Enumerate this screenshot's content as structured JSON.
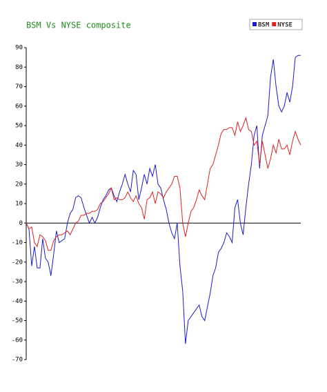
{
  "chart_data": {
    "type": "line",
    "title": "BSM Vs NYSE composite",
    "ylim": [
      -70,
      90
    ],
    "yticks": [
      -70,
      -60,
      -50,
      -40,
      -30,
      -20,
      -10,
      0,
      10,
      20,
      30,
      40,
      50,
      60,
      70,
      80,
      90
    ],
    "series": [
      {
        "name": "BSM",
        "color": "#1a1acc",
        "values": [
          0,
          -3,
          -22,
          -12,
          -23,
          -23,
          -8,
          -18,
          -20,
          -27,
          -16,
          -4,
          -10,
          -9,
          -8,
          0,
          5,
          7,
          13,
          14,
          13,
          8,
          4,
          0,
          3,
          0,
          3,
          8,
          12,
          14,
          17,
          18,
          14,
          11,
          16,
          20,
          25,
          20,
          16,
          27,
          25,
          12,
          18,
          25,
          20,
          28,
          24,
          30,
          20,
          18,
          12,
          7,
          0,
          -5,
          -8,
          0,
          -22,
          -35,
          -62,
          -50,
          -48,
          -46,
          -44,
          -42,
          -48,
          -50,
          -43,
          -36,
          -27,
          -23,
          -15,
          -13,
          -10,
          -5,
          -7,
          -10,
          8,
          12,
          0,
          -6,
          8,
          20,
          30,
          45,
          50,
          28,
          45,
          50,
          55,
          75,
          84,
          70,
          60,
          57,
          60,
          67,
          62,
          70,
          85,
          86,
          86
        ]
      },
      {
        "name": "NYSE",
        "color": "#dd2222",
        "values": [
          0,
          -3,
          -2,
          -10,
          -12,
          -6,
          -7,
          -9,
          -14,
          -14,
          -9,
          -7,
          -6,
          -6,
          -5,
          -4,
          -6,
          -3,
          0,
          1,
          4,
          4,
          5,
          5,
          6,
          6,
          7,
          10,
          11,
          13,
          15,
          18,
          12,
          13,
          12,
          12,
          13,
          16,
          13,
          11,
          14,
          10,
          8,
          2,
          12,
          13,
          16,
          10,
          16,
          15,
          13,
          16,
          18,
          20,
          24,
          24,
          18,
          0,
          -7,
          0,
          6,
          8,
          12,
          17,
          14,
          12,
          20,
          28,
          30,
          35,
          40,
          46,
          48,
          48,
          49,
          49,
          45,
          52,
          47,
          50,
          54,
          48,
          47,
          40,
          42,
          30,
          42,
          35,
          28,
          33,
          40,
          36,
          43,
          38,
          38,
          40,
          35,
          42,
          47,
          43,
          40
        ]
      }
    ]
  }
}
